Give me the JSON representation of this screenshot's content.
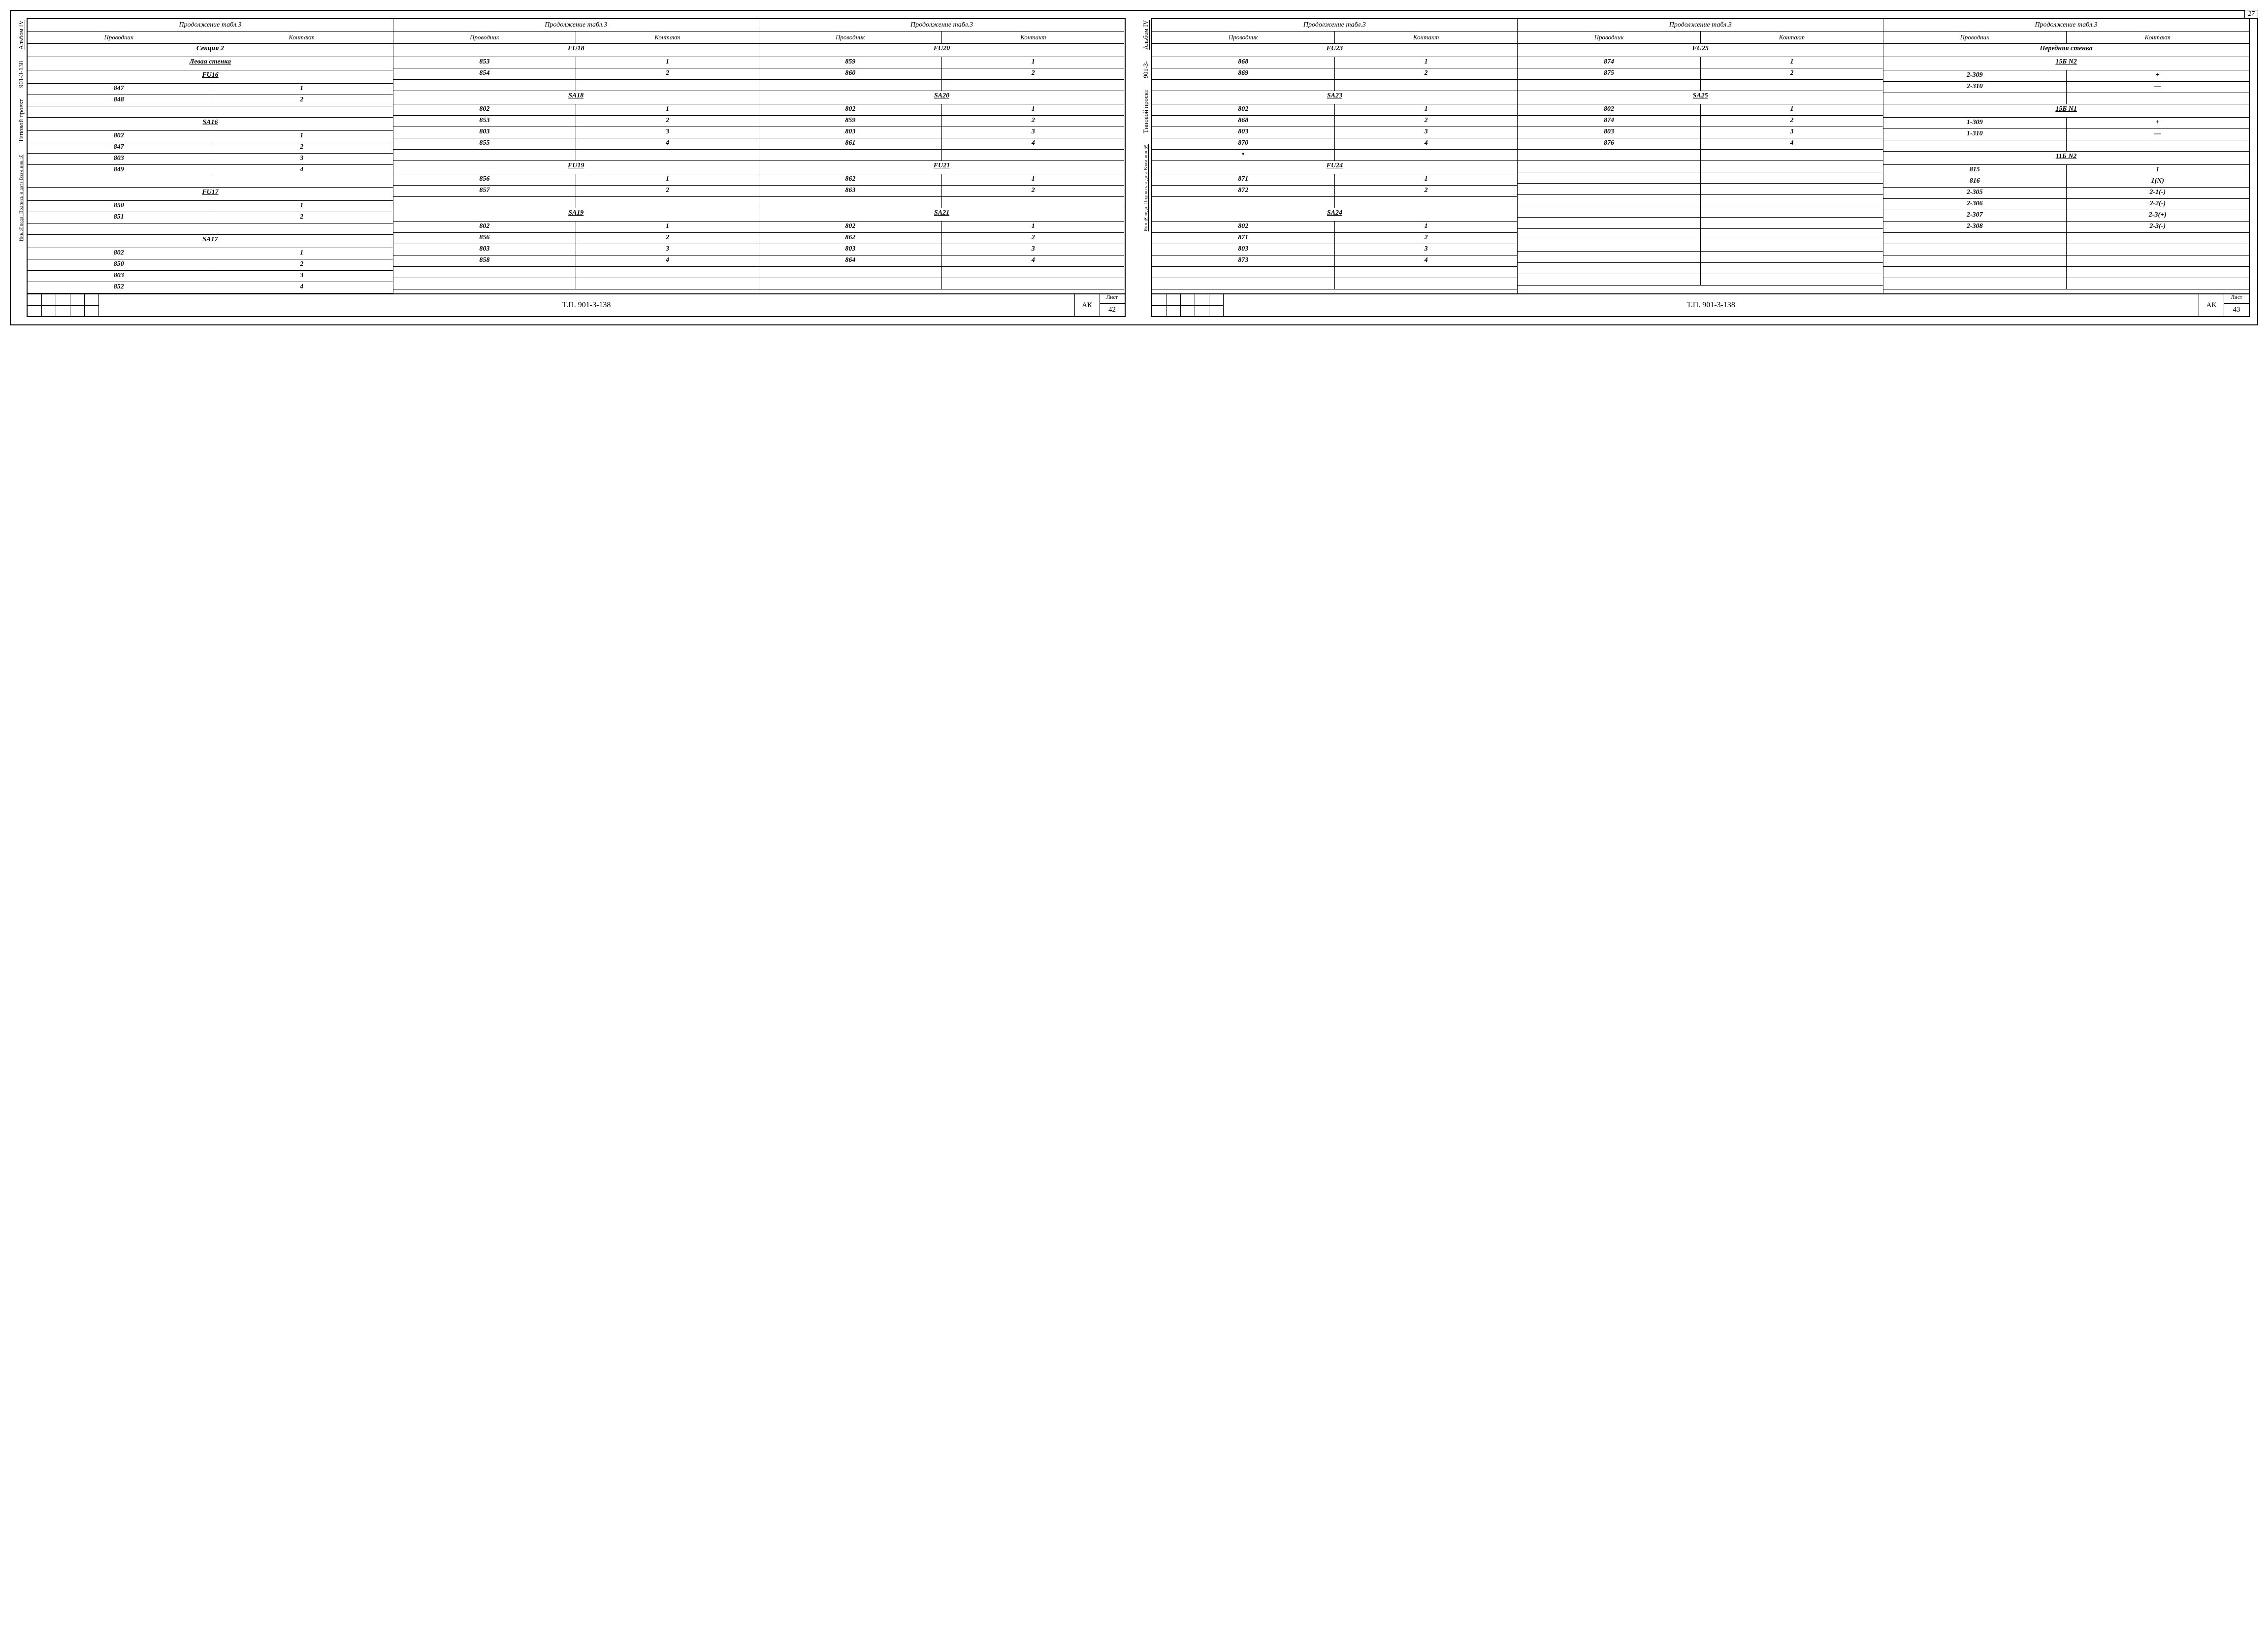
{
  "pageCorner": "27",
  "side": {
    "album": "Альбом IV",
    "code": "901-3-138",
    "proj": "Типовой проект",
    "stamp": "Инв.№подл. Подпись и дата Взам.инв.№"
  },
  "side2": {
    "album": "Альбом IV",
    "code": "901-3-",
    "proj": "Типовой проект",
    "stamp": "Инв.№подл. Подпись и дата Взам.инв.№"
  },
  "hdr": {
    "cont": "Продолжение табл.3",
    "c1": "Проводник",
    "c2": "Контакт"
  },
  "titleBlock": {
    "code": "Т.П. 901-3-138",
    "ak": "АК",
    "sheetLabel": "Лист"
  },
  "left": {
    "sheet": "42",
    "col1": [
      {
        "span": "Секция 2",
        "u": true
      },
      {
        "span": "Левая стенка",
        "u": true
      },
      {
        "span": "FU16",
        "u": true
      },
      {
        "a": "847",
        "b": "1"
      },
      {
        "a": "848",
        "b": "2"
      },
      {
        "a": "",
        "b": ""
      },
      {
        "span": "SA16",
        "u": true
      },
      {
        "a": "802",
        "b": "1"
      },
      {
        "a": "847",
        "b": "2"
      },
      {
        "a": "803",
        "b": "3"
      },
      {
        "a": "849",
        "b": "4"
      },
      {
        "a": "",
        "b": ""
      },
      {
        "span": "FU17",
        "u": true
      },
      {
        "a": "850",
        "b": "1"
      },
      {
        "a": "851",
        "b": "2"
      },
      {
        "a": "",
        "b": ""
      },
      {
        "span": "SA17",
        "u": true
      },
      {
        "a": "802",
        "b": "1"
      },
      {
        "a": "850",
        "b": "2"
      },
      {
        "a": "803",
        "b": "3"
      },
      {
        "a": "852",
        "b": "4"
      }
    ],
    "col2": [
      {
        "span": "FU18",
        "u": true
      },
      {
        "a": "853",
        "b": "1"
      },
      {
        "a": "854",
        "b": "2"
      },
      {
        "a": "",
        "b": ""
      },
      {
        "span": "SA18",
        "u": true
      },
      {
        "a": "802",
        "b": "1"
      },
      {
        "a": "853",
        "b": "2"
      },
      {
        "a": "803",
        "b": "3"
      },
      {
        "a": "855",
        "b": "4"
      },
      {
        "a": "",
        "b": ""
      },
      {
        "span": "FU19",
        "u": true
      },
      {
        "a": "856",
        "b": "1"
      },
      {
        "a": "857",
        "b": "2"
      },
      {
        "a": "",
        "b": ""
      },
      {
        "span": "SA19",
        "u": true
      },
      {
        "a": "802",
        "b": "1"
      },
      {
        "a": "856",
        "b": "2"
      },
      {
        "a": "803",
        "b": "3"
      },
      {
        "a": "858",
        "b": "4"
      },
      {
        "a": "",
        "b": ""
      },
      {
        "a": "",
        "b": ""
      }
    ],
    "col3": [
      {
        "span": "FU20",
        "u": true
      },
      {
        "a": "859",
        "b": "1"
      },
      {
        "a": "860",
        "b": "2"
      },
      {
        "a": "",
        "b": ""
      },
      {
        "span": "SA20",
        "u": true
      },
      {
        "a": "802",
        "b": "1"
      },
      {
        "a": "859",
        "b": "2"
      },
      {
        "a": "803",
        "b": "3"
      },
      {
        "a": "861",
        "b": "4"
      },
      {
        "a": "",
        "b": ""
      },
      {
        "span": "FU21",
        "u": true
      },
      {
        "a": "862",
        "b": "1"
      },
      {
        "a": "863",
        "b": "2"
      },
      {
        "a": "",
        "b": ""
      },
      {
        "span": "SA21",
        "u": true
      },
      {
        "a": "802",
        "b": "1"
      },
      {
        "a": "862",
        "b": "2"
      },
      {
        "a": "803",
        "b": "3"
      },
      {
        "a": "864",
        "b": "4"
      },
      {
        "a": "",
        "b": ""
      },
      {
        "a": "",
        "b": ""
      }
    ]
  },
  "right": {
    "sheet": "43",
    "col1": [
      {
        "span": "FU23",
        "u": true
      },
      {
        "a": "868",
        "b": "1"
      },
      {
        "a": "869",
        "b": "2"
      },
      {
        "a": "",
        "b": ""
      },
      {
        "span": "SA23",
        "u": true
      },
      {
        "a": "802",
        "b": "1"
      },
      {
        "a": "868",
        "b": "2"
      },
      {
        "a": "803",
        "b": "3"
      },
      {
        "a": "870",
        "b": "4"
      },
      {
        "a": "•",
        "b": ""
      },
      {
        "span": "FU24",
        "u": true
      },
      {
        "a": "871",
        "b": "1"
      },
      {
        "a": "872",
        "b": "2"
      },
      {
        "a": "",
        "b": ""
      },
      {
        "span": "SA24",
        "u": true
      },
      {
        "a": "802",
        "b": "1"
      },
      {
        "a": "871",
        "b": "2"
      },
      {
        "a": "803",
        "b": "3"
      },
      {
        "a": "873",
        "b": "4"
      },
      {
        "a": "",
        "b": ""
      },
      {
        "a": "",
        "b": ""
      }
    ],
    "col2": [
      {
        "span": "FU25",
        "u": true
      },
      {
        "a": "874",
        "b": "1"
      },
      {
        "a": "875",
        "b": "2"
      },
      {
        "a": "",
        "b": ""
      },
      {
        "span": "SA25",
        "u": true
      },
      {
        "a": "802",
        "b": "1"
      },
      {
        "a": "874",
        "b": "2"
      },
      {
        "a": "803",
        "b": "3"
      },
      {
        "a": "876",
        "b": "4"
      },
      {
        "a": "",
        "b": ""
      },
      {
        "a": "",
        "b": ""
      },
      {
        "a": "",
        "b": ""
      },
      {
        "a": "",
        "b": ""
      },
      {
        "a": "",
        "b": ""
      },
      {
        "a": "",
        "b": ""
      },
      {
        "a": "",
        "b": ""
      },
      {
        "a": "",
        "b": ""
      },
      {
        "a": "",
        "b": ""
      },
      {
        "a": "",
        "b": ""
      },
      {
        "a": "",
        "b": ""
      },
      {
        "a": "",
        "b": ""
      }
    ],
    "col3": [
      {
        "span": "Передняя стенка",
        "u": true
      },
      {
        "span": "15Б N2",
        "u": true
      },
      {
        "a": "2-309",
        "b": "+"
      },
      {
        "a": "2-310",
        "b": "—"
      },
      {
        "a": "",
        "b": ""
      },
      {
        "span": "15Б N1",
        "u": true
      },
      {
        "a": "1-309",
        "b": "+"
      },
      {
        "a": "1-310",
        "b": "—"
      },
      {
        "a": "",
        "b": ""
      },
      {
        "span": "11Б N2",
        "u": true
      },
      {
        "a": "815",
        "b": "1"
      },
      {
        "a": "816",
        "b": "1(N)"
      },
      {
        "a": "2-305",
        "b": "2-1(-)"
      },
      {
        "a": "2-306",
        "b": "2-2(-)"
      },
      {
        "a": "2-307",
        "b": "2-3(+)"
      },
      {
        "a": "2-308",
        "b": "2-3(-)"
      },
      {
        "a": "",
        "b": ""
      },
      {
        "a": "",
        "b": ""
      },
      {
        "a": "",
        "b": ""
      },
      {
        "a": "",
        "b": ""
      },
      {
        "a": "",
        "b": ""
      }
    ]
  }
}
